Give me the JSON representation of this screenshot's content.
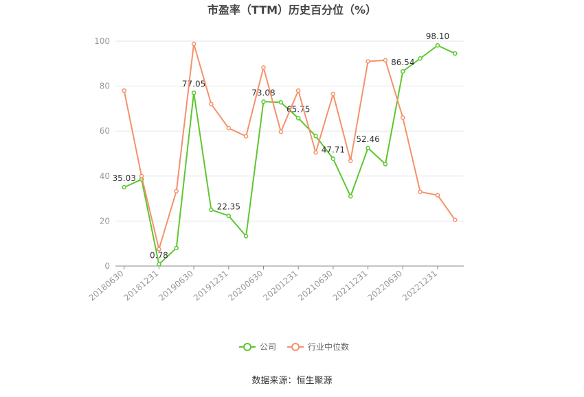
{
  "chart_data": {
    "type": "line",
    "title": "市盈率（TTM）历史百分位（%）",
    "source": "数据来源：恒生聚源",
    "categories": [
      "20180630",
      null,
      "20181231",
      null,
      "20190630",
      null,
      "20191231",
      null,
      "20200630",
      null,
      "20201231",
      null,
      "20210630",
      null,
      "20211231",
      null,
      "20220630",
      null,
      "20221231",
      null
    ],
    "series": [
      {
        "name": "公司",
        "color": "#5cc72e",
        "values": [
          35.03,
          38.5,
          0.78,
          8,
          77.05,
          25,
          22.35,
          13.3,
          73.08,
          72.8,
          65.75,
          57.8,
          47.71,
          31,
          52.46,
          45.3,
          86.54,
          92.3,
          98.1,
          94.5
        ],
        "value_labels": [
          "35.03",
          null,
          "0.78",
          null,
          "77.05",
          null,
          "22.35",
          null,
          "73.08",
          null,
          "65.75",
          null,
          "47.71",
          null,
          "52.46",
          null,
          "86.54",
          null,
          "98.10",
          null
        ]
      },
      {
        "name": "行业中位数",
        "color": "#f5916a",
        "values": [
          78,
          40,
          7.5,
          33.3,
          98.8,
          72,
          61.3,
          57.7,
          88.3,
          59.7,
          78,
          50.5,
          76.5,
          46.8,
          91,
          91.5,
          66,
          33,
          31.5,
          20.5
        ]
      }
    ],
    "ylim": [
      0,
      100
    ],
    "yticks": [
      0,
      20,
      40,
      60,
      80,
      100
    ],
    "grid": true,
    "legend": "bottom"
  }
}
